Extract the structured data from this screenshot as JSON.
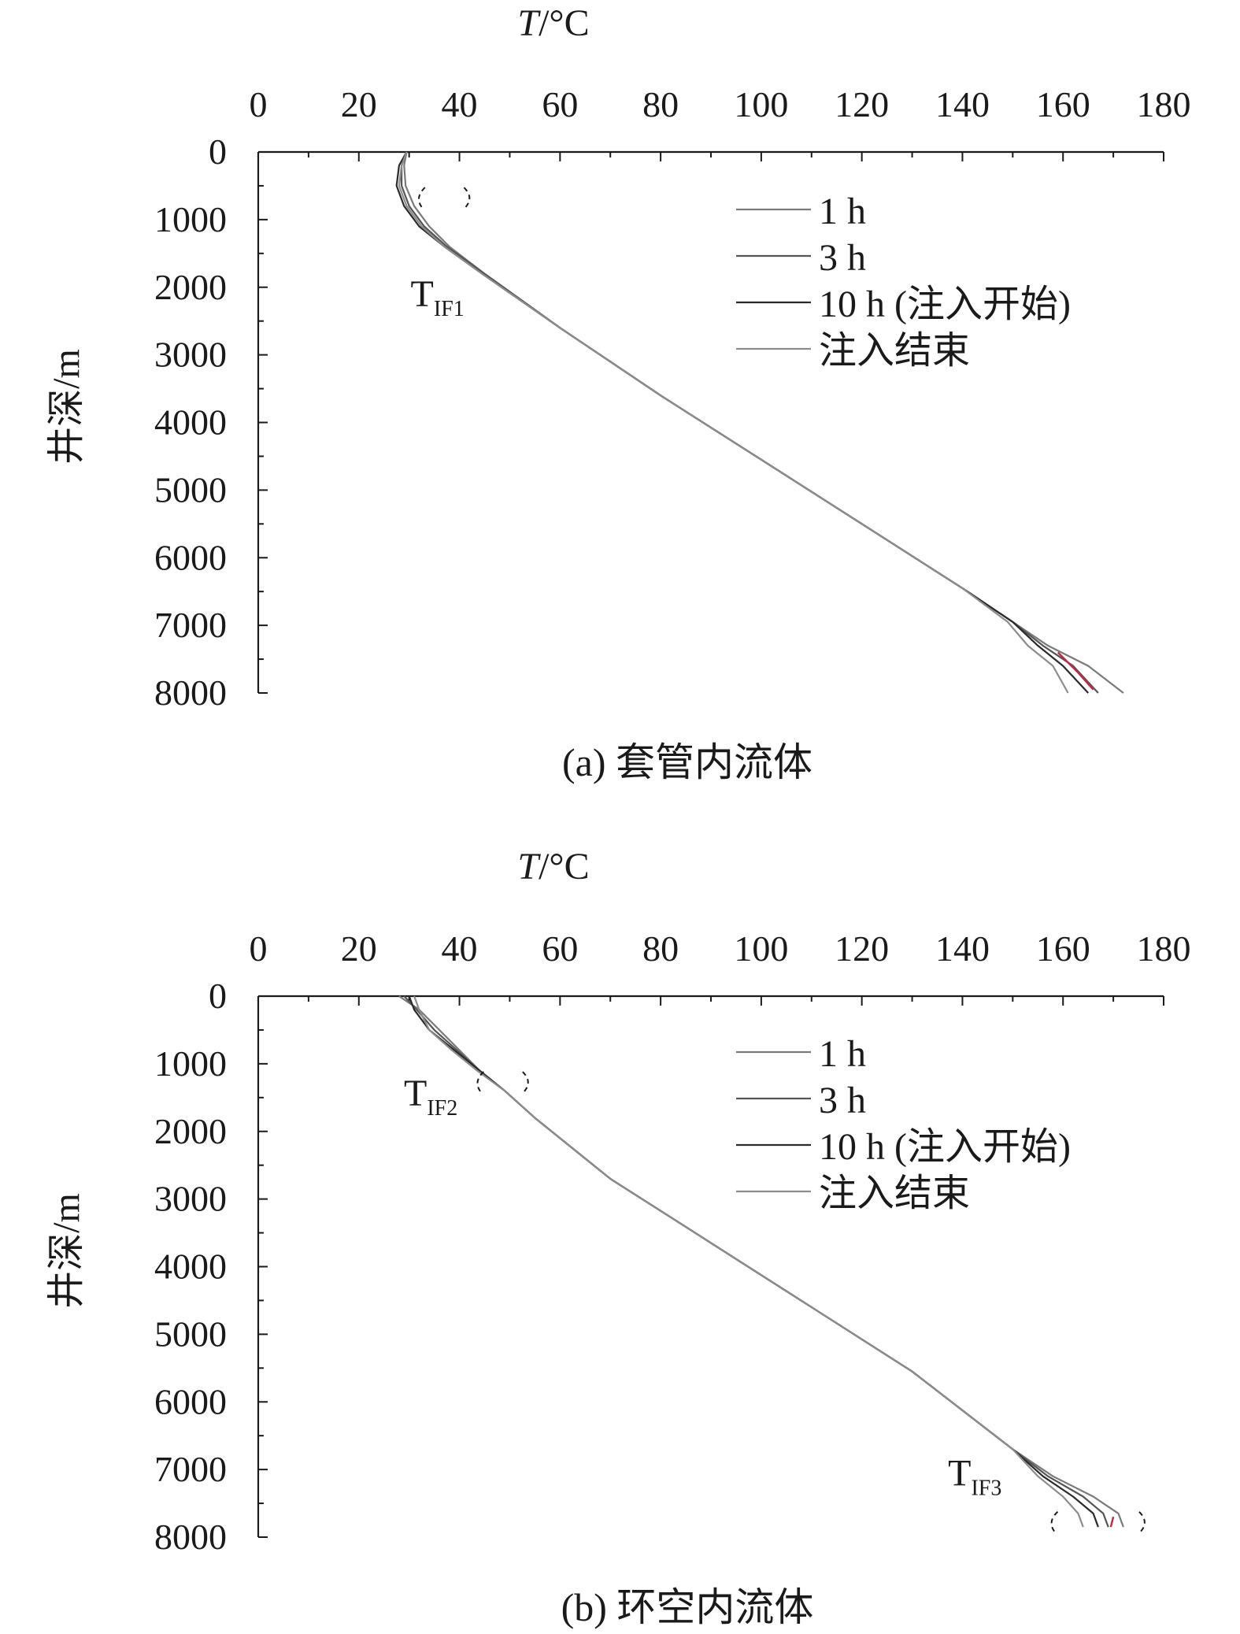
{
  "chart_data": [
    {
      "type": "line",
      "panel": "a",
      "caption": "(a) 套管内流体",
      "xlabel": "T/°C",
      "ylabel": "井深/m",
      "xlim": [
        0,
        180
      ],
      "ylim": [
        0,
        8000
      ],
      "y_inverted": true,
      "x_axis_position": "top",
      "xticks": [
        0,
        20,
        40,
        60,
        80,
        100,
        120,
        140,
        160,
        180
      ],
      "yticks": [
        0,
        1000,
        2000,
        3000,
        4000,
        5000,
        6000,
        7000,
        8000
      ],
      "grid": false,
      "legend_position": "top-right",
      "series": [
        {
          "name": "1 h",
          "color": "#7a7a7a",
          "points": [
            [
              29.5,
              0
            ],
            [
              29,
              200
            ],
            [
              29.3,
              500
            ],
            [
              31,
              800
            ],
            [
              34,
              1100
            ],
            [
              38,
              1400
            ],
            [
              45,
              1800
            ],
            [
              60,
              2600
            ],
            [
              80,
              3600
            ],
            [
              100,
              4550
            ],
            [
              120,
              5500
            ],
            [
              140,
              6450
            ],
            [
              150,
              6950
            ],
            [
              157,
              7300
            ],
            [
              165,
              7600
            ],
            [
              172,
              8000
            ]
          ]
        },
        {
          "name": "3 h",
          "color": "#555555",
          "points": [
            [
              29.5,
              0
            ],
            [
              28.5,
              200
            ],
            [
              28.5,
              500
            ],
            [
              30,
              800
            ],
            [
              33,
              1100
            ],
            [
              37.5,
              1400
            ],
            [
              45,
              1800
            ],
            [
              60,
              2600
            ],
            [
              80,
              3600
            ],
            [
              100,
              4550
            ],
            [
              120,
              5500
            ],
            [
              140,
              6450
            ],
            [
              150,
              6950
            ],
            [
              156,
              7300
            ],
            [
              162,
              7600
            ],
            [
              167,
              8000
            ]
          ]
        },
        {
          "name": "10 h (注入开始)",
          "color": "#2a2a2a",
          "points": [
            [
              29.5,
              0
            ],
            [
              28,
              200
            ],
            [
              27.5,
              500
            ],
            [
              29,
              800
            ],
            [
              32,
              1100
            ],
            [
              37,
              1400
            ],
            [
              44.5,
              1800
            ],
            [
              60,
              2600
            ],
            [
              80,
              3600
            ],
            [
              100,
              4550
            ],
            [
              120,
              5500
            ],
            [
              140,
              6450
            ],
            [
              150,
              6950
            ],
            [
              155,
              7300
            ],
            [
              160,
              7600
            ],
            [
              165,
              8000
            ]
          ]
        },
        {
          "name": "注入结束",
          "color": "#8c8c8c",
          "points": [
            [
              29.5,
              0
            ],
            [
              28.5,
              200
            ],
            [
              28,
              500
            ],
            [
              29.5,
              800
            ],
            [
              32.5,
              1100
            ],
            [
              37,
              1400
            ],
            [
              44.5,
              1800
            ],
            [
              60,
              2600
            ],
            [
              80,
              3600
            ],
            [
              100,
              4550
            ],
            [
              120,
              5500
            ],
            [
              140,
              6450
            ],
            [
              149,
              6950
            ],
            [
              153,
              7300
            ],
            [
              158,
              7600
            ],
            [
              161,
              8000
            ]
          ]
        }
      ],
      "accent_segment": {
        "color": "#c0284a",
        "points": [
          [
            159,
            7400
          ],
          [
            163,
            7700
          ],
          [
            166,
            7950
          ]
        ]
      },
      "annotations": [
        {
          "label": "T",
          "subscript": "IF1",
          "x": 40,
          "y": 1000
        }
      ]
    },
    {
      "type": "line",
      "panel": "b",
      "caption": "(b) 环空内流体",
      "xlabel": "T/°C",
      "ylabel": "井深/m",
      "xlim": [
        0,
        180
      ],
      "ylim": [
        0,
        8000
      ],
      "y_inverted": true,
      "x_axis_position": "top",
      "xticks": [
        0,
        20,
        40,
        60,
        80,
        100,
        120,
        140,
        160,
        180
      ],
      "yticks": [
        0,
        1000,
        2000,
        3000,
        4000,
        5000,
        6000,
        7000,
        8000
      ],
      "grid": false,
      "legend_position": "top-right",
      "series": [
        {
          "name": "1 h",
          "color": "#7a7a7a",
          "points": [
            [
              28,
              0
            ],
            [
              32,
              200
            ],
            [
              36,
              500
            ],
            [
              40,
              800
            ],
            [
              44,
              1100
            ],
            [
              49,
              1400
            ],
            [
              55,
              1800
            ],
            [
              70,
              2700
            ],
            [
              90,
              3650
            ],
            [
              110,
              4600
            ],
            [
              130,
              5550
            ],
            [
              150,
              6700
            ],
            [
              158,
              7100
            ],
            [
              166,
              7400
            ],
            [
              171,
              7650
            ],
            [
              172,
              7850
            ]
          ]
        },
        {
          "name": "3 h",
          "color": "#555555",
          "points": [
            [
              29,
              0
            ],
            [
              31.5,
              200
            ],
            [
              35,
              500
            ],
            [
              39.5,
              800
            ],
            [
              44,
              1100
            ],
            [
              49,
              1400
            ],
            [
              55,
              1800
            ],
            [
              70,
              2700
            ],
            [
              90,
              3650
            ],
            [
              110,
              4600
            ],
            [
              130,
              5550
            ],
            [
              150,
              6700
            ],
            [
              157,
              7100
            ],
            [
              164,
              7400
            ],
            [
              168,
              7650
            ],
            [
              169,
              7850
            ]
          ]
        },
        {
          "name": "10 h (注入开始)",
          "color": "#2a2a2a",
          "points": [
            [
              30,
              0
            ],
            [
              31,
              200
            ],
            [
              34,
              500
            ],
            [
              39,
              800
            ],
            [
              44,
              1100
            ],
            [
              49,
              1400
            ],
            [
              55,
              1800
            ],
            [
              70,
              2700
            ],
            [
              90,
              3650
            ],
            [
              110,
              4600
            ],
            [
              130,
              5550
            ],
            [
              150,
              6700
            ],
            [
              156,
              7100
            ],
            [
              162,
              7400
            ],
            [
              166,
              7650
            ],
            [
              167,
              7850
            ]
          ]
        },
        {
          "name": "注入结束",
          "color": "#8c8c8c",
          "points": [
            [
              31,
              0
            ],
            [
              32,
              200
            ],
            [
              34,
              500
            ],
            [
              38.5,
              800
            ],
            [
              43.5,
              1100
            ],
            [
              49,
              1400
            ],
            [
              55,
              1800
            ],
            [
              70,
              2700
            ],
            [
              90,
              3650
            ],
            [
              110,
              4600
            ],
            [
              130,
              5550
            ],
            [
              150,
              6700
            ],
            [
              155,
              7100
            ],
            [
              160,
              7400
            ],
            [
              163,
              7650
            ],
            [
              164,
              7850
            ]
          ]
        }
      ],
      "accent_segment": {
        "color": "#c0284a",
        "points": [
          [
            170,
            7700
          ],
          [
            169.5,
            7850
          ]
        ]
      },
      "annotations": [
        {
          "label": "T",
          "subscript": "IF2",
          "x": 54,
          "y": 1500
        },
        {
          "label": "T",
          "subscript": "IF3",
          "x": 170,
          "y": 7820
        }
      ]
    }
  ]
}
